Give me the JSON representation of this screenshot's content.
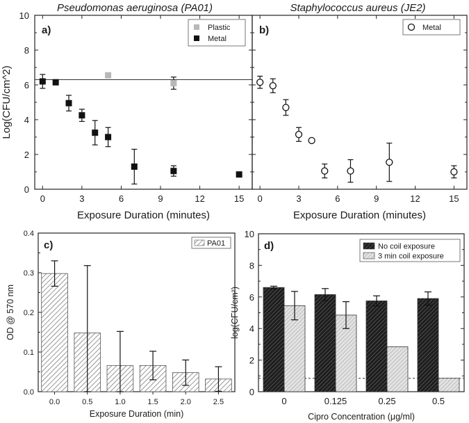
{
  "figure": {
    "titles": [
      "Pseudomonas aeruginosa (PA01)",
      "Staphylococcus aureus (JE2)"
    ]
  },
  "chart_data": [
    {
      "panel": "a)",
      "type": "scatter",
      "title": "Pseudomonas aeruginosa (PA01)",
      "xlabel": "Exposure Duration (minutes)",
      "ylabel": "Log(CFU/cm^2)",
      "xlim": [
        -0.6,
        16
      ],
      "ylim": [
        0,
        10
      ],
      "xticks": [
        0,
        3,
        6,
        9,
        12,
        15
      ],
      "xtick_labels": [
        "0",
        "3",
        "6",
        "9",
        "12",
        "15"
      ],
      "yticks": [
        0,
        2,
        4,
        6,
        8,
        10
      ],
      "ytick_labels": [
        "0",
        "2",
        "4",
        "6",
        "8",
        "10"
      ],
      "reference_line": 6.3,
      "series": [
        {
          "name": "Plastic",
          "marker": "square",
          "color": "#b8b8b8",
          "x": [
            5,
            10
          ],
          "y": [
            6.55,
            6.1
          ],
          "err": [
            0.1,
            0.35
          ]
        },
        {
          "name": "Metal",
          "marker": "square",
          "color": "#111111",
          "x": [
            0,
            1,
            2,
            3,
            4,
            5,
            7,
            10,
            15
          ],
          "y": [
            6.2,
            6.15,
            4.95,
            4.25,
            3.25,
            3.0,
            1.3,
            1.05,
            0.85
          ],
          "err": [
            0.4,
            0.15,
            0.45,
            0.35,
            0.7,
            0.55,
            1.0,
            0.3,
            0.0
          ]
        }
      ],
      "legend": "top-right"
    },
    {
      "panel": "b)",
      "type": "scatter",
      "title": "Staphylococcus aureus (JE2)",
      "xlabel": "Exposure Duration (minutes)",
      "ylabel": "",
      "xlim": [
        -0.6,
        16
      ],
      "ylim": [
        0,
        10
      ],
      "xticks": [
        0,
        3,
        6,
        9,
        12,
        15
      ],
      "xtick_labels": [
        "0",
        "3",
        "6",
        "9",
        "12",
        "15"
      ],
      "series": [
        {
          "name": "Metal",
          "marker": "circle-open",
          "color": "#111111",
          "x": [
            0,
            1,
            2,
            3,
            4,
            5,
            7,
            10,
            15
          ],
          "y": [
            6.15,
            5.95,
            4.7,
            3.15,
            2.8,
            1.05,
            1.05,
            1.55,
            1.0
          ],
          "err": [
            0.35,
            0.4,
            0.45,
            0.4,
            0.0,
            0.4,
            0.65,
            1.1,
            0.35
          ]
        }
      ],
      "legend": "top-right"
    },
    {
      "panel": "c)",
      "type": "bar",
      "xlabel": "Exposure Duration (min)",
      "ylabel": "OD @ 570 nm",
      "categories": [
        "0.0",
        "0.5",
        "1.0",
        "1.5",
        "2.0",
        "2.5"
      ],
      "ylim": [
        0,
        0.4
      ],
      "yticks": [
        0,
        0.1,
        0.2,
        0.3,
        0.4
      ],
      "ytick_labels": [
        "0.0",
        "0.1",
        "0.2",
        "0.3",
        "0.4"
      ],
      "series": [
        {
          "name": "PA01",
          "values": [
            0.298,
            0.148,
            0.066,
            0.066,
            0.048,
            0.032
          ],
          "err": [
            0.032,
            0.17,
            0.086,
            0.036,
            0.032,
            0.031
          ]
        }
      ],
      "legend": "top-right"
    },
    {
      "panel": "d)",
      "type": "bar",
      "xlabel": "Cipro Concentration (μg/ml)",
      "ylabel": "log(CFU/cm²)",
      "categories": [
        "0",
        "0.125",
        "0.25",
        "0.5"
      ],
      "ylim": [
        0,
        10
      ],
      "yticks": [
        0,
        2,
        4,
        6,
        8,
        10
      ],
      "ytick_labels": [
        "0",
        "2",
        "4",
        "6",
        "8",
        "10"
      ],
      "reference_line": 0.85,
      "series": [
        {
          "name": "No coil exposure",
          "values": [
            6.6,
            6.15,
            5.75,
            5.9
          ],
          "err": [
            0.08,
            0.38,
            0.32,
            0.42
          ]
        },
        {
          "name": "3 min coil exposure",
          "values": [
            5.45,
            4.85,
            2.85,
            0.85
          ],
          "err": [
            0.9,
            0.85,
            0.0,
            0.0
          ]
        }
      ],
      "legend": "top-right"
    }
  ]
}
